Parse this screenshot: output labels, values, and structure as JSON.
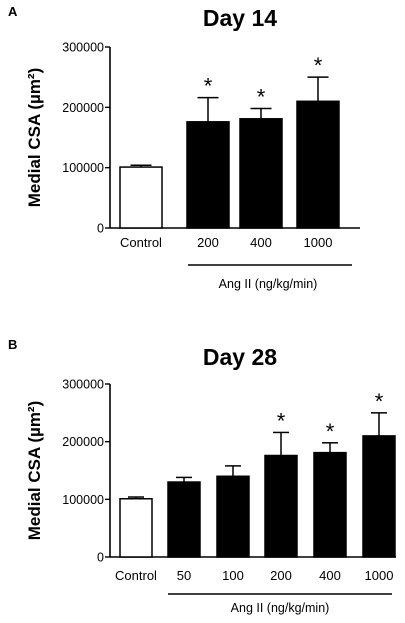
{
  "chart_data": [
    {
      "type": "bar",
      "panel": "A",
      "title": "Day 14",
      "ylabel": "Medial CSA (µm²)",
      "xlabel": "",
      "categories": [
        "Control",
        "200",
        "400",
        "1000"
      ],
      "values": [
        101000,
        176000,
        181000,
        210000
      ],
      "errors": [
        3000,
        40000,
        17000,
        40000
      ],
      "significant": [
        false,
        true,
        true,
        true
      ],
      "significance_marker": "*",
      "fill": [
        "#ffffff",
        "#000000",
        "#000000",
        "#000000"
      ],
      "ylim": [
        0,
        300000
      ],
      "yticks": [
        "0",
        "100000",
        "200000",
        "300000"
      ],
      "group_label": "Ang II (ng/kg/min)",
      "grid": false
    },
    {
      "type": "bar",
      "panel": "B",
      "title": "Day 28",
      "ylabel": "Medial CSA (µm²)",
      "xlabel": "",
      "categories": [
        "Control",
        "50",
        "100",
        "200",
        "400",
        "1000"
      ],
      "values": [
        101000,
        130000,
        140000,
        176000,
        181000,
        210000
      ],
      "errors": [
        3000,
        8000,
        18000,
        40000,
        17000,
        40000
      ],
      "significant": [
        false,
        false,
        false,
        true,
        true,
        true
      ],
      "significance_marker": "*",
      "fill": [
        "#ffffff",
        "#000000",
        "#000000",
        "#000000",
        "#000000",
        "#000000"
      ],
      "ylim": [
        0,
        300000
      ],
      "yticks": [
        "0",
        "100000",
        "200000",
        "300000"
      ],
      "group_label": "Ang II (ng/kg/min)",
      "grid": false
    }
  ]
}
